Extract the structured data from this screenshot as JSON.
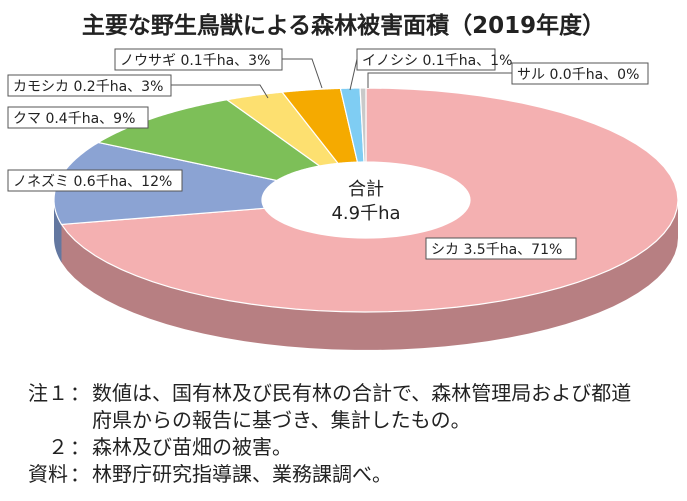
{
  "chart_data": {
    "type": "pie",
    "style": "3d-donut",
    "title": "主要な野生鳥獣による森林被害面積（2019年度）",
    "center_label": [
      "合計",
      "4.9千ha"
    ],
    "unit": "千ha",
    "slices": [
      {
        "name": "シカ",
        "value": 3.5,
        "percent": 71,
        "label": "シカ 3.5千ha、71%",
        "color": "#f4b0b1",
        "side": "#b77f82"
      },
      {
        "name": "ノネズミ",
        "value": 0.6,
        "percent": 12,
        "label": "ノネズミ 0.6千ha、12%",
        "color": "#8ba3d3",
        "side": "#6377a0"
      },
      {
        "name": "クマ",
        "value": 0.4,
        "percent": 9,
        "label": "クマ 0.4千ha、9%",
        "color": "#7dbf58",
        "side": "#5a8f3e"
      },
      {
        "name": "カモシカ",
        "value": 0.2,
        "percent": 3,
        "label": "カモシカ 0.2千ha、3%",
        "color": "#fde070",
        "side": "#c4ab4f"
      },
      {
        "name": "ノウサギ",
        "value": 0.1,
        "percent": 3,
        "label": "ノウサギ 0.1千ha、3%",
        "color": "#f5aa00",
        "side": "#b87f00"
      },
      {
        "name": "イノシシ",
        "value": 0.1,
        "percent": 1,
        "label": "イノシシ 0.1千ha、1%",
        "color": "#7fcdf3",
        "side": "#5b9bbb"
      },
      {
        "name": "サル",
        "value": 0.0,
        "percent": 0,
        "label": "サル 0.0千ha、0%",
        "color": "#c9c9c9",
        "side": "#999999"
      }
    ]
  },
  "notes": [
    {
      "key": "注１",
      "text": "数値は、国有林及び民有林の合計で、森林管理局および都道"
    },
    {
      "key": "",
      "text": "府県からの報告に基づき、集計したもの。"
    },
    {
      "key": "２",
      "text": "森林及び苗畑の被害。"
    },
    {
      "key": "資料",
      "text": "林野庁研究指導課、業務課調べ。"
    }
  ],
  "separator": "："
}
